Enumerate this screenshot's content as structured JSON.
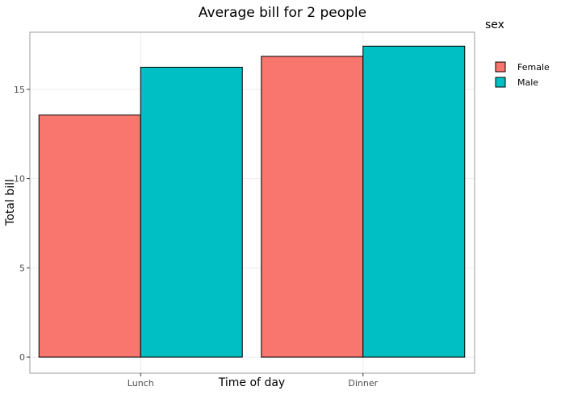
{
  "chart_data": {
    "type": "bar",
    "title": "Average bill for 2 people",
    "xlabel": "Time of day",
    "ylabel": "Total bill",
    "categories": [
      "Lunch",
      "Dinner"
    ],
    "series": [
      {
        "name": "Female",
        "values": [
          13.56,
          16.85
        ],
        "color": "#F8766D"
      },
      {
        "name": "Male",
        "values": [
          16.24,
          17.42
        ],
        "color": "#00BFC4"
      }
    ],
    "ylim": [
      -0.9,
      18.2
    ],
    "yticks": [
      0,
      5,
      10,
      15
    ],
    "ytick_labels": [
      "0",
      "5",
      "10",
      "15"
    ],
    "legend": {
      "title": "sex",
      "placement": "right"
    },
    "grid": true
  }
}
